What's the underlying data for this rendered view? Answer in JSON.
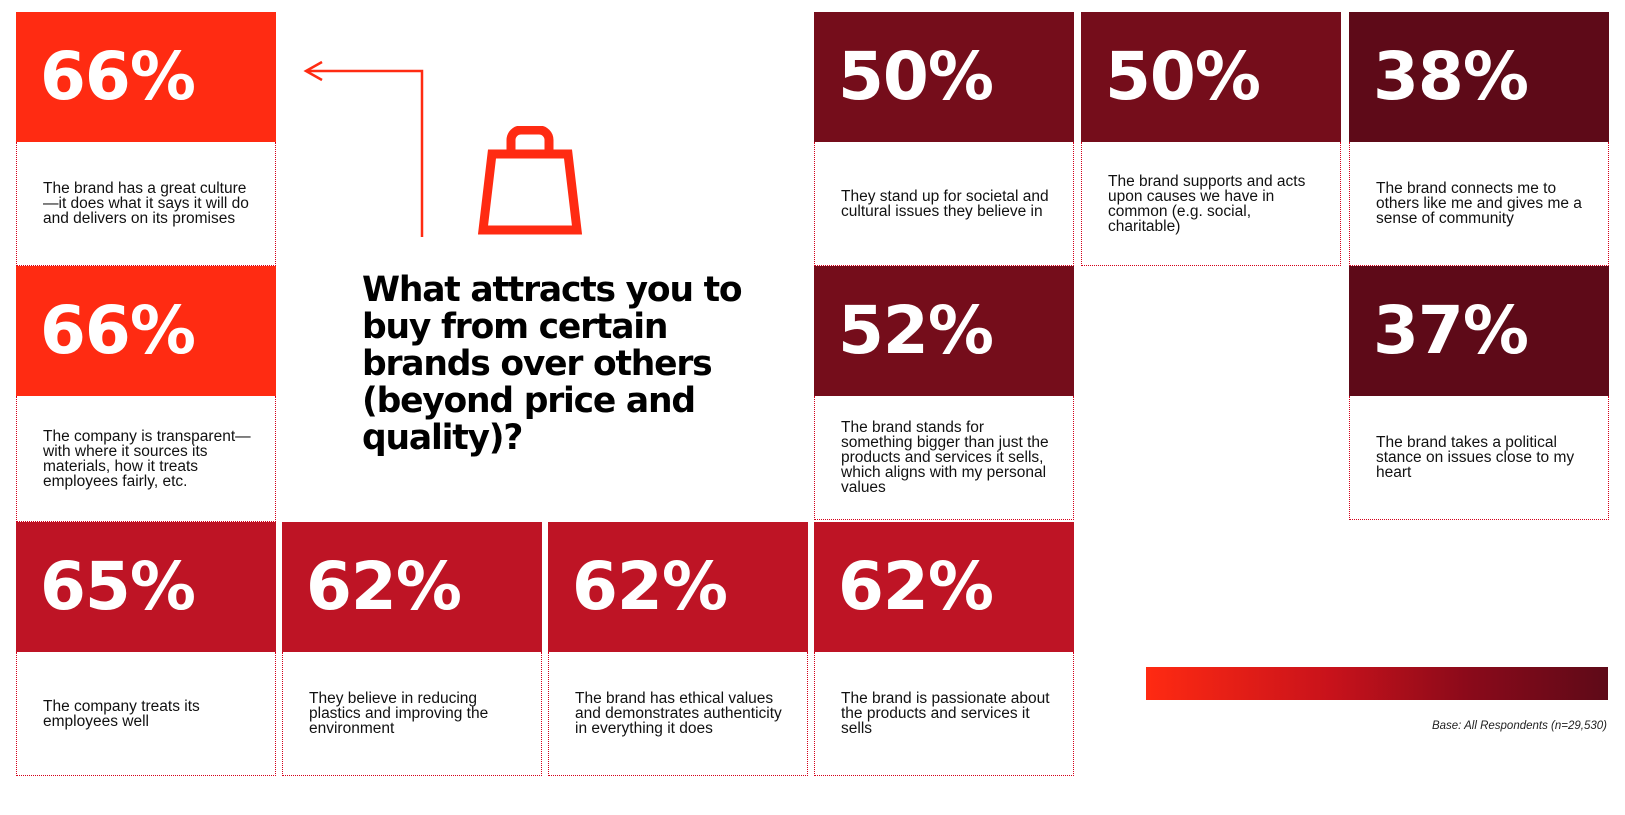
{
  "title": "What attracts you to buy from certain brands over others (beyond price and quality)?",
  "colors": {
    "bright_red": "#ff2b12",
    "crimson": "#be1425",
    "maroon": "#750d1b",
    "dark_maroon": "#5e0a18"
  },
  "icons": {
    "bag": "shopping-bag-icon",
    "arrow": "arrow-left-icon"
  },
  "cards": [
    {
      "pct": "66%",
      "text": "The brand has a great culture—it does what it says it will do and delivers on its promises"
    },
    {
      "pct": "66%",
      "text": "The company is transparent—with where it sources its materials, how it treats employees fairly, etc."
    },
    {
      "pct": "65%",
      "text": "The company treats its employees well"
    },
    {
      "pct": "62%",
      "text": "They believe in reducing plastics and improving the environment"
    },
    {
      "pct": "62%",
      "text": "The brand has ethical values and demonstrates authenticity in everything it does"
    },
    {
      "pct": "62%",
      "text": "The brand is passionate about the products and services it sells"
    },
    {
      "pct": "52%",
      "text": "The brand stands for something bigger than just the products and services it sells, which aligns with my personal values"
    },
    {
      "pct": "50%",
      "text": "They stand up for societal and cultural issues they believe in"
    },
    {
      "pct": "50%",
      "text": "The brand supports and acts upon causes we have in common (e.g. social, charitable)"
    },
    {
      "pct": "38%",
      "text": "The brand connects me to others like me and gives me a sense of community"
    },
    {
      "pct": "37%",
      "text": "The brand takes a political stance on issues close to my heart"
    }
  ],
  "base_note": "Base: All Respondents (n=29,530)"
}
